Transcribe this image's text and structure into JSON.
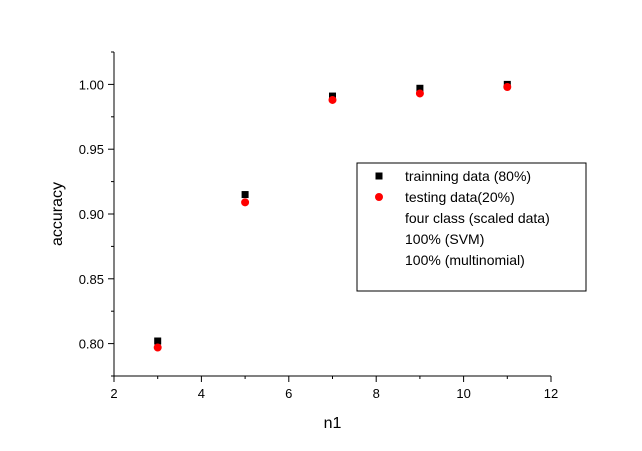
{
  "chart_data": {
    "type": "scatter",
    "title": "",
    "xlabel": "n1",
    "ylabel": "accuracy",
    "xlim": [
      2,
      12
    ],
    "ylim": [
      0.775,
      1.025
    ],
    "xticks": [
      2,
      4,
      6,
      8,
      10,
      12
    ],
    "yticks": [
      0.8,
      0.85,
      0.9,
      0.95,
      1.0
    ],
    "xtick_labels": [
      "2",
      "4",
      "6",
      "8",
      "10",
      "12"
    ],
    "ytick_labels": [
      "0.80",
      "0.85",
      "0.90",
      "0.95",
      "1.00"
    ],
    "grid": false,
    "legend_position": "right",
    "series": [
      {
        "name": "trainning data (80%)",
        "marker": "square",
        "color": "#000000",
        "x": [
          3,
          5,
          7,
          9,
          11
        ],
        "y": [
          0.802,
          0.915,
          0.991,
          0.997,
          1.0
        ]
      },
      {
        "name": "testing data(20%)",
        "marker": "circle",
        "color": "#ff0000",
        "x": [
          3,
          5,
          7,
          9,
          11
        ],
        "y": [
          0.797,
          0.909,
          0.988,
          0.993,
          0.998
        ]
      }
    ],
    "legend_notes": [
      "four class (scaled data)",
      "100% (SVM)",
      "100% (multinomial)"
    ]
  }
}
